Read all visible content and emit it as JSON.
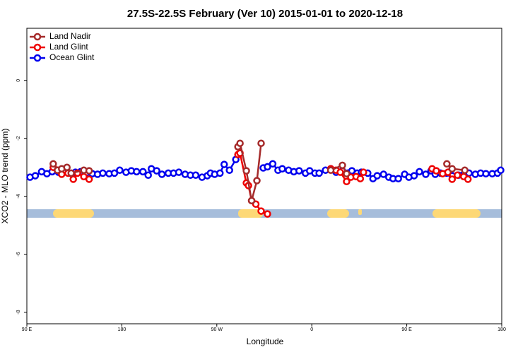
{
  "chart_data": {
    "type": "line",
    "title": "27.5S-22.5S February (Ver 10)   2015-01-01 to 2020-12-18",
    "x_label": "Longitude",
    "y_label": "XCO2 - MLO trend (ppm)",
    "xlim": [
      90,
      540
    ],
    "xticks": [
      {
        "value": 90,
        "label": "90 E"
      },
      180,
      {
        "value": 270,
        "label": "90 W"
      },
      {
        "value": 360,
        "label": "0"
      },
      {
        "value": 450,
        "label": "90 E"
      },
      {
        "value": 540,
        "label": "180"
      }
    ],
    "ylim": [
      -8.4,
      1.8
    ],
    "yticks": [
      0,
      -2,
      -4,
      -6,
      -8
    ],
    "legend": "top-left",
    "series": [
      {
        "name": "Land Nadir",
        "color": "#a52a2a",
        "x": [
          115,
          119,
          123,
          128,
          132,
          144,
          149,
          null,
          290,
          292,
          298,
          303,
          308,
          312,
          null,
          378,
          389,
          393,
          null,
          488,
          493,
          505
        ],
        "values": [
          -2.88,
          -3.1,
          -3.05,
          -3.0,
          -3.2,
          -3.1,
          -3.12,
          null,
          -2.29,
          -2.17,
          -3.12,
          -4.15,
          -3.46,
          -2.17,
          null,
          -3.1,
          -2.93,
          -3.22,
          null,
          -2.88,
          -3.05,
          -3.1
        ]
      },
      {
        "name": "Land Glint",
        "color": "#ee0000",
        "x": [
          115,
          119,
          123,
          129,
          134,
          138,
          144,
          149,
          null,
          290,
          292,
          298,
          300,
          303,
          307,
          312,
          318,
          null,
          378,
          383,
          387,
          393,
          397,
          402,
          406,
          409,
          null,
          474,
          478,
          484,
          489,
          493,
          498,
          504,
          508
        ],
        "values": [
          -3.0,
          -3.1,
          -3.24,
          -3.2,
          -3.41,
          -3.2,
          -3.32,
          -3.41,
          null,
          -2.56,
          -2.51,
          -3.54,
          -3.63,
          -4.15,
          -4.27,
          -4.51,
          -4.61,
          null,
          -3.05,
          -3.1,
          -3.17,
          -3.49,
          -3.34,
          -3.32,
          -3.39,
          -3.17,
          null,
          -3.05,
          -3.12,
          -3.22,
          -3.17,
          -3.41,
          -3.27,
          -3.32,
          -3.41
        ]
      },
      {
        "name": "Ocean Glint",
        "color": "#0000ee",
        "x": [
          93,
          98,
          104,
          109,
          114,
          120,
          125,
          130,
          136,
          141,
          146,
          152,
          157,
          162,
          168,
          173,
          178,
          184,
          189,
          194,
          200,
          205,
          208,
          213,
          218,
          224,
          229,
          234,
          240,
          245,
          250,
          256,
          261,
          264,
          268,
          273,
          277,
          282,
          288,
          null,
          314,
          318,
          323,
          328,
          332,
          338,
          343,
          348,
          354,
          358,
          363,
          367,
          373,
          378,
          383,
          389,
          394,
          398,
          403,
          407,
          413,
          418,
          422,
          428,
          433,
          437,
          442,
          448,
          452,
          457,
          462,
          468,
          473,
          477,
          482,
          488,
          493,
          499,
          504,
          509,
          515,
          520,
          525,
          531,
          536,
          539
        ],
        "values": [
          -3.34,
          -3.29,
          -3.15,
          -3.22,
          -3.15,
          -3.17,
          -3.17,
          -3.2,
          -3.17,
          -3.15,
          -3.2,
          -3.22,
          -3.24,
          -3.2,
          -3.22,
          -3.2,
          -3.1,
          -3.17,
          -3.12,
          -3.15,
          -3.15,
          -3.27,
          -3.05,
          -3.12,
          -3.24,
          -3.2,
          -3.2,
          -3.17,
          -3.24,
          -3.27,
          -3.27,
          -3.34,
          -3.29,
          -3.2,
          -3.24,
          -3.2,
          -2.9,
          -3.1,
          -2.73,
          null,
          -3.02,
          -2.98,
          -2.88,
          -3.1,
          -3.05,
          -3.1,
          -3.15,
          -3.12,
          -3.2,
          -3.12,
          -3.2,
          -3.2,
          -3.1,
          -3.05,
          -3.17,
          -3.12,
          -3.2,
          -3.12,
          -3.2,
          -3.17,
          -3.2,
          -3.39,
          -3.29,
          -3.24,
          -3.34,
          -3.39,
          -3.39,
          -3.24,
          -3.34,
          -3.29,
          -3.15,
          -3.24,
          -3.12,
          -3.24,
          -3.2,
          -3.2,
          -3.29,
          -3.27,
          -3.24,
          -3.2,
          -3.24,
          -3.2,
          -3.22,
          -3.22,
          -3.2,
          -3.1
        ]
      }
    ]
  }
}
